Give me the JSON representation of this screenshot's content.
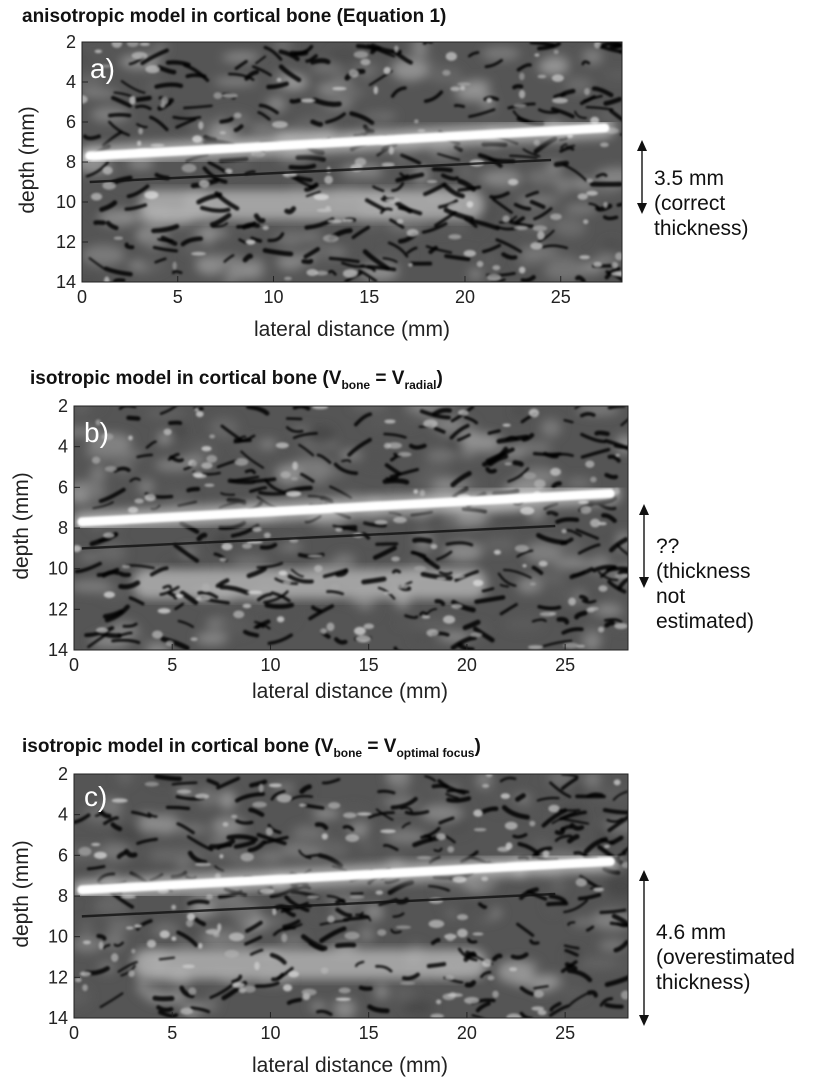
{
  "panels": [
    {
      "letter": "a)",
      "title": {
        "pre": "anisotropic model in cortical bone (Equation 1)",
        "sub1": "",
        "mid": "",
        "sub2": "",
        "post": ""
      },
      "annotation": [
        "3.5 mm",
        "(correct",
        "thickness)"
      ]
    },
    {
      "letter": "b)",
      "title": {
        "pre": "isotropic model in cortical bone (V",
        "sub1": "bone",
        "mid": " = V",
        "sub2": "radial",
        "post": ")"
      },
      "annotation": [
        "??",
        "(thickness",
        "not",
        "estimated)"
      ]
    },
    {
      "letter": "c)",
      "title": {
        "pre": "isotropic model in cortical bone (V",
        "sub1": "bone",
        "mid": " = V",
        "sub2": "optimal focus",
        "post": ")"
      },
      "annotation": [
        "4.6 mm",
        "(overestimated",
        "thickness)"
      ]
    }
  ],
  "axes": {
    "xlabel": "lateral distance (mm)",
    "ylabel": "depth (mm)",
    "xticks": [
      "0",
      "5",
      "10",
      "15",
      "20",
      "25"
    ],
    "yticks": [
      "2",
      "4",
      "6",
      "8",
      "10",
      "12",
      "14"
    ],
    "xrange": [
      0,
      28.2
    ],
    "yrange": [
      2,
      14
    ]
  },
  "image_colors": {
    "background": "#555555",
    "bright": "#ffffff",
    "dark": "#000000"
  }
}
